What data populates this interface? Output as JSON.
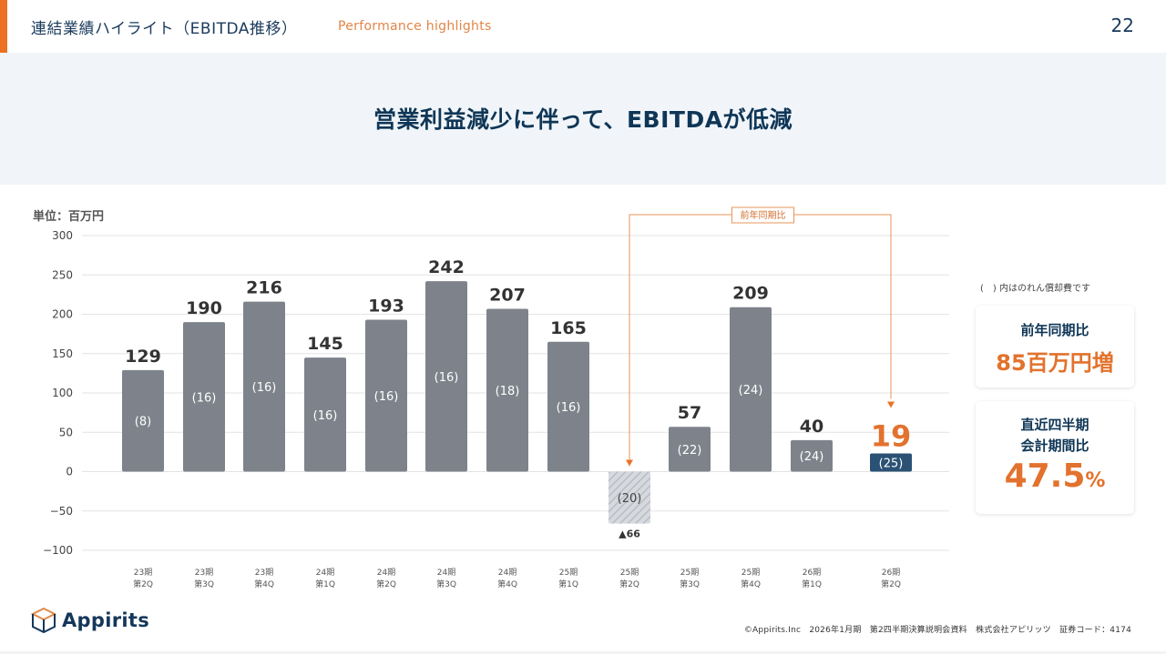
{
  "header": {
    "title": "連結業績ハイライト（EBITDA推移）",
    "subtitle": "Performance highlights",
    "page_number": "22"
  },
  "banner": {
    "headline": "営業利益減少に伴って、EBITDAが低減"
  },
  "unit_label": "単位：百万円",
  "note": "(　) 内はのれん償却費です",
  "cards": [
    {
      "label_lines": [
        "前年同期比"
      ],
      "value": "85百万円増"
    },
    {
      "label_lines": [
        "直近四半期",
        "会計期間比"
      ],
      "value": "47.5",
      "value_suffix": "%"
    }
  ],
  "comparison_bracket_label": "前年同期比",
  "colors": {
    "accent": "#ec7125",
    "bar": "#7e838b",
    "highlight_bar": "#2b5275",
    "navy": "#0f3656",
    "orange_text": "#e2722d"
  },
  "chart_data": {
    "type": "bar",
    "title": "",
    "xlabel": "",
    "ylabel": "単位：百万円",
    "ylim": [
      -100,
      300
    ],
    "yticks": [
      300,
      250,
      200,
      150,
      100,
      50,
      0,
      -50,
      -100
    ],
    "grid": true,
    "categories": [
      [
        "23期",
        "第2Q"
      ],
      [
        "23期",
        "第3Q"
      ],
      [
        "23期",
        "第4Q"
      ],
      [
        "24期",
        "第1Q"
      ],
      [
        "24期",
        "第2Q"
      ],
      [
        "24期",
        "第3Q"
      ],
      [
        "24期",
        "第4Q"
      ],
      [
        "25期",
        "第1Q"
      ],
      [
        "25期",
        "第2Q"
      ],
      [
        "25期",
        "第3Q"
      ],
      [
        "25期",
        "第4Q"
      ],
      [
        "26期",
        "第1Q"
      ],
      [
        "26期",
        "第2Q"
      ]
    ],
    "series": [
      {
        "name": "EBITDA",
        "values": [
          129,
          190,
          216,
          145,
          193,
          242,
          207,
          165,
          -66,
          57,
          209,
          40,
          19
        ],
        "value_labels": [
          "129",
          "190",
          "216",
          "145",
          "193",
          "242",
          "207",
          "165",
          "▲66",
          "57",
          "209",
          "40",
          "19"
        ]
      },
      {
        "name": "のれん償却費",
        "values": [
          8,
          16,
          16,
          16,
          16,
          16,
          18,
          16,
          20,
          22,
          24,
          24,
          25
        ],
        "value_labels": [
          "(8)",
          "(16)",
          "(16)",
          "(16)",
          "(16)",
          "(16)",
          "(18)",
          "(16)",
          "(20)",
          "(22)",
          "(24)",
          "(24)",
          "(25)"
        ]
      }
    ],
    "highlight_index": 12,
    "negative_hatched_index": 8,
    "annotation": {
      "text": "前年同期比",
      "from_index": 8,
      "to_index": 12
    }
  },
  "logo": {
    "text": "Appirits"
  },
  "footer": {
    "text": "©Appirits.Inc　2026年1月期　第2四半期決算説明会資料　株式会社アピリッツ　証券コード：4174"
  }
}
